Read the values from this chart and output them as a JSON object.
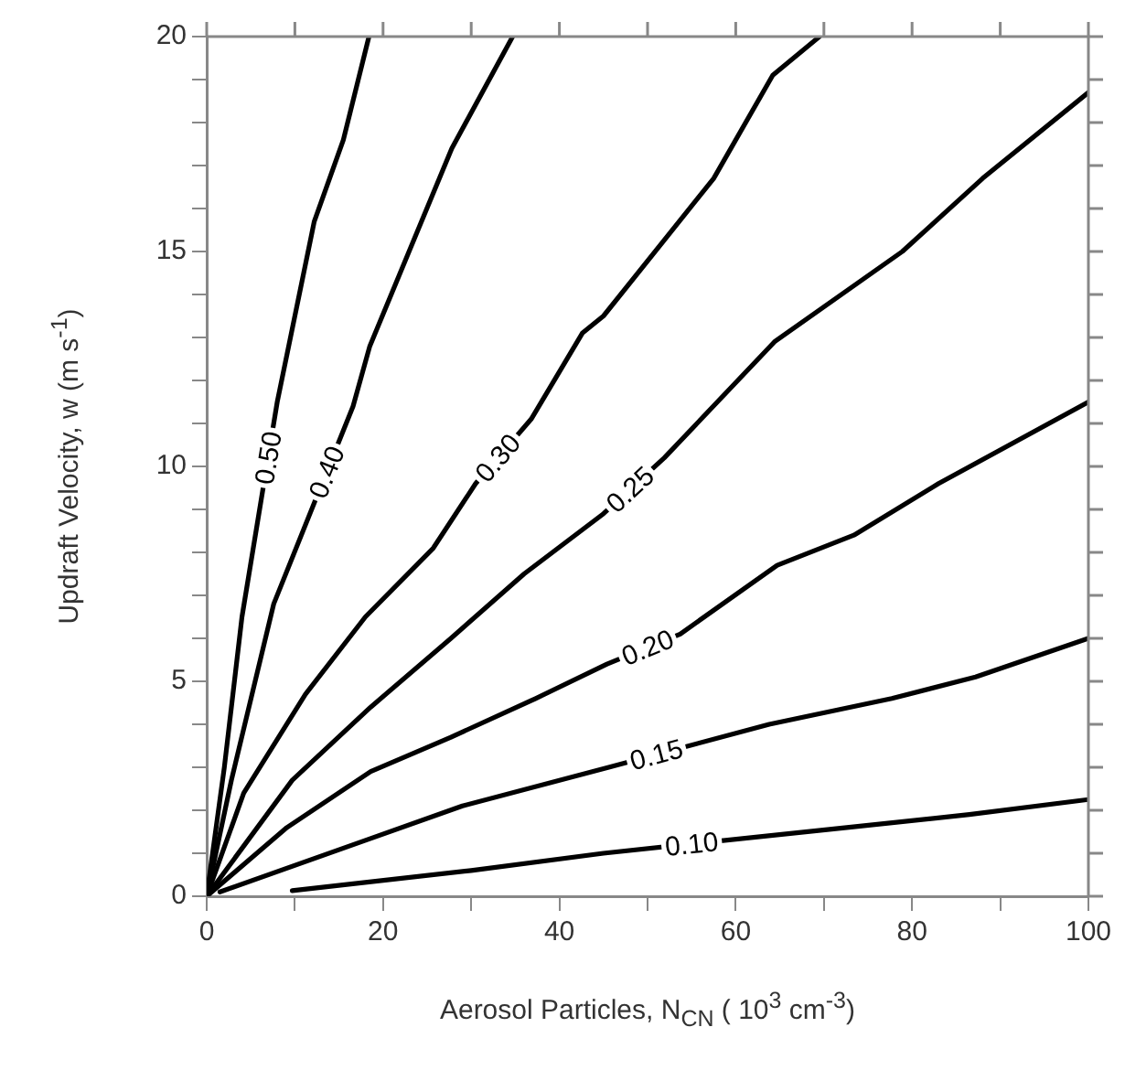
{
  "chart_data": {
    "type": "line",
    "xlabel": "Aerosol Particles, N$_{CN}$ ( 10$^{3}$ cm$^{-3}$)",
    "ylabel": "Updraft Velocity, w (m s$^{-1}$)",
    "xlim": [
      0,
      100
    ],
    "ylim": [
      0,
      20
    ],
    "xticks": [
      0,
      {
        "value": 10,
        "label": null
      },
      20,
      {
        "value": 30,
        "label": null
      },
      40,
      {
        "value": 50,
        "label": null
      },
      60,
      {
        "value": 70,
        "label": null
      },
      80,
      {
        "value": 90,
        "label": null
      },
      100
    ],
    "yticks": [
      0,
      {
        "value": 1,
        "label": null
      },
      {
        "value": 2,
        "label": null
      },
      {
        "value": 3,
        "label": null
      },
      {
        "value": 4,
        "label": null
      },
      5,
      {
        "value": 6,
        "label": null
      },
      {
        "value": 7,
        "label": null
      },
      {
        "value": 8,
        "label": null
      },
      {
        "value": 9,
        "label": null
      },
      10,
      {
        "value": 11,
        "label": null
      },
      {
        "value": 12,
        "label": null
      },
      {
        "value": 13,
        "label": null
      },
      {
        "value": 14,
        "label": null
      },
      15,
      {
        "value": 16,
        "label": null
      },
      {
        "value": 17,
        "label": null
      },
      {
        "value": 18,
        "label": null
      },
      {
        "value": 19,
        "label": null
      },
      20
    ],
    "grid": false,
    "legend": false,
    "marker": "none",
    "line_style": "solid",
    "series": [
      {
        "name": "0.50",
        "color": "#000000",
        "x": [
          0,
          2,
          4,
          8,
          12.2,
          15.5,
          18.4
        ],
        "values": [
          0,
          3,
          6.5,
          11.5,
          15.7,
          17.6,
          20
        ]
      },
      {
        "name": "0.40",
        "color": "#000000",
        "x": [
          0,
          2.8,
          7.6,
          16.6,
          18.5,
          27.8,
          34.7
        ],
        "values": [
          0,
          2.7,
          6.8,
          11.4,
          12.8,
          17.4,
          20
        ]
      },
      {
        "name": "0.30",
        "color": "#000000",
        "x": [
          0,
          4.2,
          11.2,
          18,
          25.7,
          30.5,
          36.8,
          42.6,
          45,
          57.5,
          64.2,
          69.5
        ],
        "values": [
          0,
          2.4,
          4.7,
          6.5,
          8.1,
          9.6,
          11.1,
          13.1,
          13.5,
          16.7,
          19.1,
          20
        ]
      },
      {
        "name": "0.25",
        "color": "#000000",
        "x": [
          0,
          9.7,
          18.6,
          27.7,
          36,
          45,
          51.9,
          64.4,
          78.9,
          88,
          100
        ],
        "values": [
          0,
          2.7,
          4.4,
          6,
          7.5,
          8.9,
          10.2,
          12.9,
          15,
          16.7,
          18.7
        ]
      },
      {
        "name": "0.20",
        "color": "#000000",
        "x": [
          0,
          9.1,
          18.6,
          27.7,
          37.3,
          45.4,
          53.7,
          64.7,
          73.4,
          83,
          100
        ],
        "values": [
          0,
          1.6,
          2.9,
          3.7,
          4.6,
          5.4,
          6.1,
          7.7,
          8.4,
          9.6,
          11.5
        ]
      },
      {
        "name": "0.15",
        "color": "#000000",
        "x": [
          1.5,
          18,
          29,
          45.6,
          63.8,
          77.7,
          87.2,
          100
        ],
        "values": [
          0.1,
          1.3,
          2.1,
          3,
          4,
          4.6,
          5.1,
          6
        ]
      },
      {
        "name": "0.10",
        "color": "#000000",
        "x": [
          9.7,
          30,
          45,
          72.6,
          86.5,
          100
        ],
        "values": [
          0.13,
          0.6,
          1,
          1.6,
          1.9,
          2.25
        ]
      }
    ]
  }
}
